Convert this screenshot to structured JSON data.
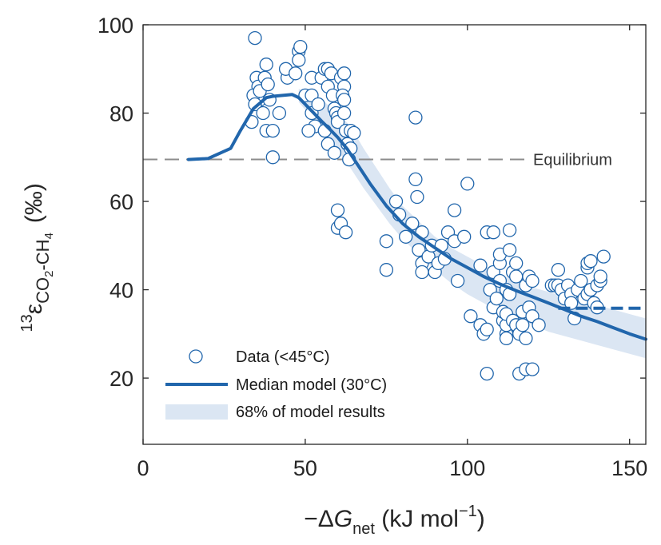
{
  "chart_data": {
    "type": "scatter",
    "xlabel": "−ΔG_net (kJ mol⁻¹)",
    "ylabel": "13ε CO2-CH4 (‰)",
    "xlabel_parts": {
      "pre": "−Δ",
      "var": "G",
      "sub": "net",
      "unit_pre": " (kJ mol",
      "sup": "−1",
      "unit_post": ")"
    },
    "ylabel_parts": {
      "pre_sup": "13",
      "var": "ε",
      "sub1": "CO",
      "sub2": "2",
      "sub3": "-CH",
      "sub4": "4",
      "unit": "(‰)"
    },
    "xlim": [
      0,
      155
    ],
    "ylim": [
      5,
      100
    ],
    "xticks": [
      0,
      50,
      100,
      150
    ],
    "yticks": [
      20,
      40,
      60,
      80,
      100
    ],
    "grid": false,
    "legend_position": "bottom-left",
    "colors": {
      "primary": "#2166ac",
      "band": "#dbe6f3",
      "equilibrium": "#8c8c8c",
      "axis": "#262626"
    },
    "equilibrium": {
      "label": "Equilibrium",
      "y": 69.5
    },
    "legend": [
      {
        "label": "Data (<45°C)",
        "kind": "marker"
      },
      {
        "label": "Median model (30°C)",
        "kind": "line"
      },
      {
        "label": "68% of model results",
        "kind": "band"
      }
    ],
    "series": [
      {
        "name": "Data (<45°C)",
        "kind": "scatter",
        "points": [
          [
            34.5,
            97
          ],
          [
            35,
            88
          ],
          [
            35.5,
            86
          ],
          [
            36,
            83
          ],
          [
            34,
            84
          ],
          [
            33.5,
            78
          ],
          [
            34.5,
            82
          ],
          [
            36,
            85
          ],
          [
            37.5,
            88
          ],
          [
            38,
            91
          ],
          [
            38.5,
            86.5
          ],
          [
            39,
            83
          ],
          [
            37,
            80
          ],
          [
            38,
            76
          ],
          [
            40,
            76
          ],
          [
            40,
            70
          ],
          [
            42,
            80
          ],
          [
            44.5,
            88
          ],
          [
            44,
            90
          ],
          [
            47,
            89
          ],
          [
            48,
            94
          ],
          [
            48.5,
            95
          ],
          [
            48,
            92
          ],
          [
            50,
            84
          ],
          [
            52,
            88
          ],
          [
            52,
            84
          ],
          [
            52,
            80
          ],
          [
            53,
            77
          ],
          [
            51,
            76
          ],
          [
            54,
            82
          ],
          [
            55,
            88
          ],
          [
            56,
            90
          ],
          [
            57,
            90
          ],
          [
            58,
            89
          ],
          [
            57,
            86
          ],
          [
            58.5,
            84
          ],
          [
            59,
            81
          ],
          [
            59.5,
            80
          ],
          [
            60,
            79
          ],
          [
            56,
            76
          ],
          [
            57,
            73
          ],
          [
            59,
            71
          ],
          [
            60,
            78
          ],
          [
            61,
            88
          ],
          [
            62,
            89
          ],
          [
            62,
            86
          ],
          [
            61.5,
            84
          ],
          [
            62,
            83
          ],
          [
            62,
            80
          ],
          [
            62.5,
            76
          ],
          [
            64,
            76
          ],
          [
            65,
            75.5
          ],
          [
            63,
            73
          ],
          [
            64,
            72
          ],
          [
            63.5,
            69.5
          ],
          [
            60,
            58
          ],
          [
            60,
            54
          ],
          [
            61,
            55
          ],
          [
            62.5,
            53
          ],
          [
            75,
            51
          ],
          [
            75,
            44.5
          ],
          [
            78,
            60
          ],
          [
            79,
            57
          ],
          [
            81,
            52
          ],
          [
            83,
            55
          ],
          [
            84,
            65
          ],
          [
            84.5,
            61
          ],
          [
            84,
            79
          ],
          [
            86,
            53
          ],
          [
            85,
            49
          ],
          [
            86,
            46
          ],
          [
            86,
            44
          ],
          [
            88,
            47.5
          ],
          [
            89,
            50
          ],
          [
            90,
            44
          ],
          [
            91,
            46
          ],
          [
            92,
            50
          ],
          [
            93,
            47
          ],
          [
            94,
            53
          ],
          [
            96,
            51
          ],
          [
            96,
            58
          ],
          [
            97,
            42
          ],
          [
            99,
            52
          ],
          [
            100,
            64
          ],
          [
            101,
            34
          ],
          [
            104,
            32
          ],
          [
            105,
            30
          ],
          [
            106,
            31
          ],
          [
            106,
            21
          ],
          [
            104,
            45.5
          ],
          [
            106,
            53
          ],
          [
            107,
            40
          ],
          [
            108,
            36
          ],
          [
            108,
            44
          ],
          [
            108,
            53
          ],
          [
            109,
            38
          ],
          [
            110,
            42
          ],
          [
            110,
            46
          ],
          [
            110,
            48
          ],
          [
            111,
            33
          ],
          [
            111,
            35
          ],
          [
            112,
            30
          ],
          [
            112,
            29
          ],
          [
            112,
            32
          ],
          [
            112,
            34.5
          ],
          [
            112,
            40
          ],
          [
            113,
            39
          ],
          [
            113,
            49
          ],
          [
            113,
            53.5
          ],
          [
            114,
            33
          ],
          [
            114,
            44
          ],
          [
            115,
            46
          ],
          [
            115,
            43
          ],
          [
            115,
            32
          ],
          [
            116,
            21
          ],
          [
            116,
            30
          ],
          [
            117,
            32
          ],
          [
            117,
            35
          ],
          [
            118,
            22
          ],
          [
            118,
            29
          ],
          [
            118,
            41
          ],
          [
            119,
            43
          ],
          [
            119,
            36
          ],
          [
            120,
            22
          ],
          [
            120,
            34
          ],
          [
            120,
            42
          ],
          [
            122,
            32
          ],
          [
            126,
            41
          ],
          [
            127,
            41
          ],
          [
            128,
            41
          ],
          [
            128,
            44.5
          ],
          [
            129,
            40
          ],
          [
            130,
            38
          ],
          [
            131,
            41
          ],
          [
            132,
            39
          ],
          [
            132,
            37
          ],
          [
            133,
            33.5
          ],
          [
            134,
            40
          ],
          [
            135,
            42
          ],
          [
            136,
            38
          ],
          [
            137,
            39
          ],
          [
            137,
            45
          ],
          [
            137,
            46
          ],
          [
            138,
            46.5
          ],
          [
            138,
            40
          ],
          [
            139,
            37
          ],
          [
            140,
            41
          ],
          [
            140,
            36
          ],
          [
            141,
            42
          ],
          [
            141,
            43
          ],
          [
            142,
            47.5
          ]
        ]
      },
      {
        "name": "Median model (30°C)",
        "kind": "line",
        "x": [
          14,
          20,
          27,
          30,
          34,
          38,
          40,
          43,
          46,
          48,
          50,
          52,
          55,
          58,
          60,
          63,
          66,
          70,
          75,
          80,
          85,
          90,
          95,
          100,
          105,
          110,
          115,
          120,
          125,
          130,
          135,
          140,
          145,
          150,
          155
        ],
        "y": [
          69.5,
          69.7,
          72,
          76,
          81,
          83.5,
          83.8,
          84,
          84.2,
          83.5,
          82,
          80.5,
          78.2,
          76,
          74.5,
          71.8,
          68.5,
          64,
          59,
          55,
          52,
          49.5,
          47,
          45,
          43,
          41.3,
          39.8,
          38.4,
          37,
          35.5,
          34,
          32.8,
          31.4,
          30,
          28.8
        ]
      },
      {
        "name": "68% of model results",
        "kind": "band",
        "x": [
          48,
          52,
          56,
          60,
          64,
          68,
          72,
          76,
          80,
          85,
          90,
          95,
          100,
          105,
          110,
          115,
          120,
          125,
          130,
          135,
          140,
          145,
          150,
          155
        ],
        "upper": [
          85.5,
          84,
          82.5,
          80,
          77,
          72,
          67.5,
          63,
          59,
          55.5,
          52,
          49.5,
          47.5,
          45.5,
          43.5,
          42,
          40.5,
          39.5,
          38.5,
          37.5,
          36.5,
          35.5,
          34.5,
          33.5
        ],
        "lower": [
          82.5,
          79,
          75,
          71.5,
          67.5,
          63,
          59,
          55,
          51.5,
          48,
          44.5,
          41.5,
          39,
          37,
          35,
          33.5,
          32,
          30.5,
          29.5,
          28.5,
          27.5,
          26.5,
          25.5,
          24.5
        ]
      },
      {
        "kind": "dashed-segment",
        "x": [
          128,
          155
        ],
        "y": [
          35.8,
          35.8
        ]
      }
    ]
  }
}
